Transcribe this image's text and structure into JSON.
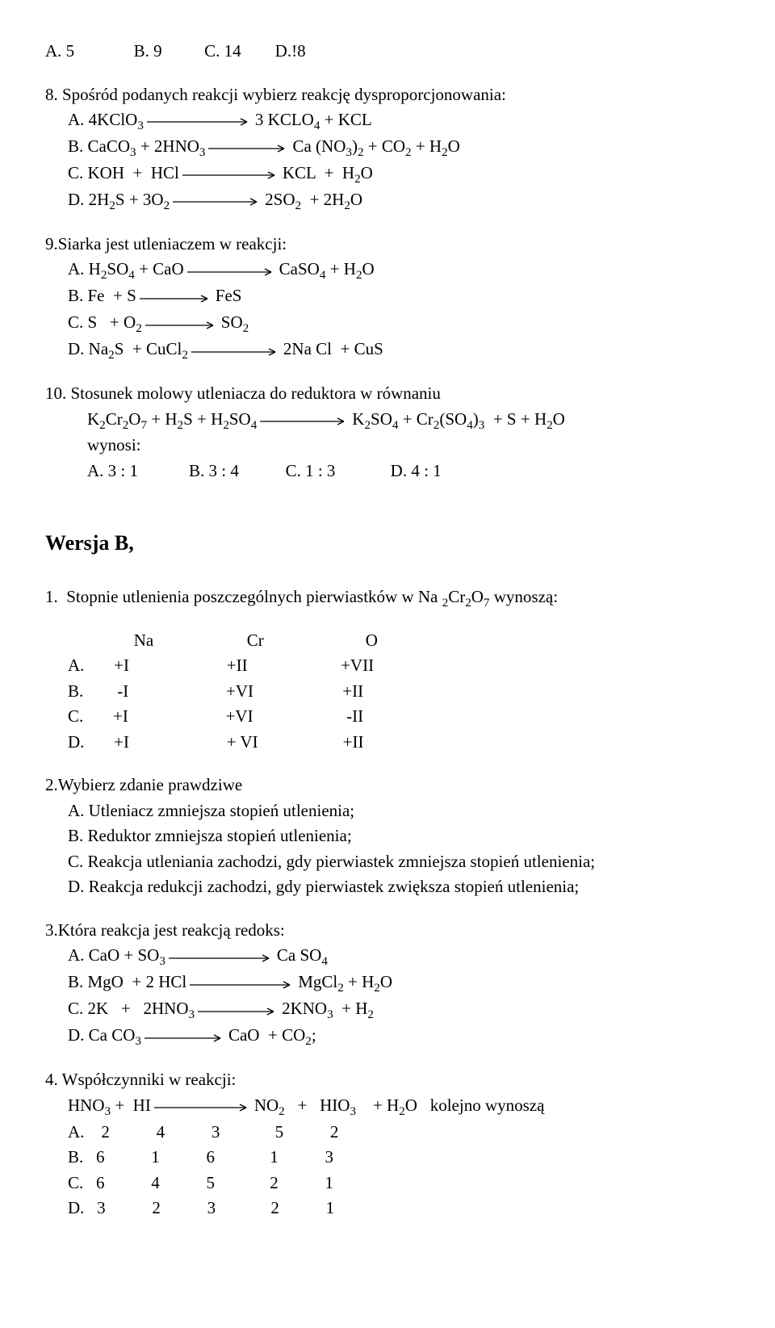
{
  "q_top_answers": "A. 5              B. 9          C. 14        D.!8",
  "q8": {
    "prompt": "8. Spośród podanych reakcji wybierz reakcję dysproporcjonowania:",
    "a_left": "A. 4KClO₃",
    "a_right": "3 KCLO₄ + KCL",
    "b_left": "B. CaCO₃ + 2HNO₃",
    "b_right": "Ca (NO₃)₂ + CO₂ + H₂O",
    "c_left": "C. KOH  +  HCl",
    "c_right": "KCL  +  H₂O",
    "d_left": "D. 2H₂S + 3O₂",
    "d_right": "2SO₂  + 2H₂O"
  },
  "q9": {
    "prompt": "9.Siarka jest utleniaczem w reakcji:",
    "a_left": "A. H₂SO₄ + CaO",
    "a_right": "CaSO₄ + H₂O",
    "b_left": "B. Fe  + S",
    "b_right": "FeS",
    "c_left": "C. S   + O₂",
    "c_right": "SO₂",
    "d_left": "D. Na₂S  + CuCl₂",
    "d_right": "2Na Cl  + CuS"
  },
  "q10": {
    "prompt": "10. Stosunek molowy utleniacza do reduktora w równaniu",
    "eq_left": "K₂Cr₂O₇ + H₂S + H₂SO₄",
    "eq_right": "K₂SO₄ + Cr₂(SO₄)₃  + S + H₂O",
    "wynosi": "wynosi:",
    "answers": "A. 3 : 1            B. 3 : 4           C. 1 : 3             D. 4 : 1"
  },
  "versionB": "Wersja B,",
  "b1": {
    "prompt": "1.  Stopnie utlenienia poszczególnych pierwiastków w Na ₂Cr₂O₇ wynoszą:",
    "hdr": "           Na                      Cr                        O",
    "a": "A.       +I                       +II                      +VII",
    "b": "B.        -I                       +VI                     +II",
    "c": "C.       +I                       +VI                      -II",
    "d": "D.       +I                       + VI                    +II"
  },
  "b2": {
    "prompt": "2.Wybierz zdanie prawdziwe",
    "a": "A. Utleniacz zmniejsza stopień utlenienia;",
    "b": "B. Reduktor zmniejsza stopień utlenienia;",
    "c": "C. Reakcja utleniania zachodzi, gdy pierwiastek zmniejsza stopień utlenienia;",
    "d": "D. Reakcja redukcji zachodzi, gdy pierwiastek zwiększa stopień utlenienia;"
  },
  "b3": {
    "prompt": "3.Która reakcja jest reakcją redoks:",
    "a_left": "A. CaO + SO₃",
    "a_right": "Ca SO₄",
    "b_left": "B. MgO  + 2 HCl",
    "b_right": "MgCl₂ + H₂O",
    "c_left": "C. 2K   +   2HNO₃",
    "c_right": "2KNO₃  + H₂",
    "d_left": "D. Ca CO₃",
    "d_right": "CaO  + CO₂;"
  },
  "b4": {
    "prompt": "4. Współczynniki w reakcji:",
    "eq_left": "HNO₃ +  HI",
    "eq_right": "NO₂   +   HIO₃    + H₂O   kolejno wynoszą",
    "a": "A.    2           4           3             5           2",
    "b": "B.   6           1           6             1           3",
    "c": "C.   6           4           5             2           1",
    "d": "D.   3           2           3             2           1"
  },
  "arrow": {
    "len_short": 90,
    "len_med": 110,
    "color": "#000000"
  }
}
